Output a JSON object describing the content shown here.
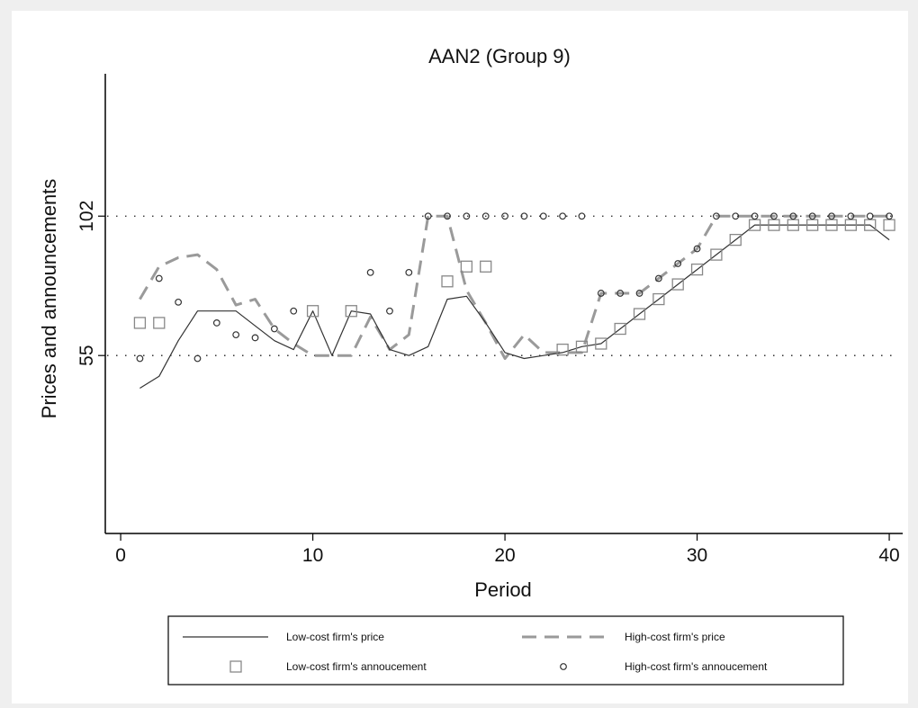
{
  "chart_data": {
    "type": "line",
    "title": "AAN2 (Group 9)",
    "xlabel": "Period",
    "ylabel": "Prices and announcements",
    "xlim": [
      -0.8,
      40.7
    ],
    "ylim": [
      -5,
      150
    ],
    "xticks": [
      0,
      10,
      20,
      30,
      40
    ],
    "yticks": [
      55,
      102
    ],
    "reference_lines": [
      55,
      102
    ],
    "grid": false,
    "legend_position": "bottom",
    "series": [
      {
        "name": "Low-cost firm's price",
        "style": "solid",
        "x": [
          1,
          2,
          3,
          4,
          5,
          6,
          7,
          8,
          9,
          10,
          11,
          12,
          13,
          14,
          15,
          16,
          17,
          18,
          19,
          20,
          21,
          22,
          23,
          24,
          25,
          26,
          27,
          28,
          29,
          30,
          31,
          32,
          33,
          34,
          35,
          36,
          37,
          38,
          39,
          40
        ],
        "y": [
          44,
          48,
          60,
          70,
          70,
          70,
          65,
          60,
          57,
          70,
          55,
          70,
          69,
          57,
          55,
          58,
          74,
          75,
          66,
          56,
          54,
          55,
          56,
          58,
          59,
          64,
          69,
          74,
          79,
          84,
          89,
          94,
          99,
          99,
          99,
          99,
          99,
          99,
          99,
          94
        ]
      },
      {
        "name": "High-cost firm's price",
        "style": "dashed",
        "x": [
          1,
          2,
          3,
          4,
          5,
          6,
          7,
          8,
          9,
          10,
          11,
          12,
          13,
          14,
          15,
          16,
          17,
          18,
          19,
          20,
          21,
          22,
          23,
          24,
          25,
          26,
          27,
          28,
          29,
          30,
          31,
          32,
          33,
          34,
          35,
          36,
          37,
          38,
          39,
          40
        ],
        "y": [
          74,
          85,
          88,
          89,
          84,
          72,
          74,
          64,
          59,
          55,
          55,
          55,
          68,
          57,
          62,
          102,
          102,
          77,
          66,
          54,
          62,
          56,
          56,
          56,
          76,
          76,
          76,
          81,
          86,
          91,
          102,
          102,
          102,
          102,
          102,
          102,
          102,
          102,
          102,
          102
        ]
      },
      {
        "name": "Low-cost firm's annoucement",
        "marker": "square",
        "x": [
          1,
          2,
          10,
          12,
          17,
          18,
          19,
          23,
          24,
          25,
          26,
          27,
          28,
          29,
          30,
          31,
          32,
          33,
          34,
          35,
          36,
          37,
          38,
          39,
          40
        ],
        "y": [
          66,
          66,
          70,
          70,
          80,
          85,
          85,
          57,
          58,
          59,
          64,
          69,
          74,
          79,
          84,
          89,
          94,
          99,
          99,
          99,
          99,
          99,
          99,
          99,
          99
        ]
      },
      {
        "name": "High-cost firm's annoucement",
        "marker": "circle",
        "x": [
          1,
          2,
          3,
          4,
          5,
          6,
          7,
          8,
          9,
          13,
          14,
          15,
          16,
          17,
          18,
          19,
          20,
          21,
          22,
          23,
          24,
          25,
          26,
          27,
          28,
          29,
          30,
          31,
          32,
          33,
          34,
          35,
          36,
          37,
          38,
          39,
          40
        ],
        "y": [
          54,
          81,
          73,
          54,
          66,
          62,
          61,
          64,
          70,
          83,
          70,
          83,
          102,
          102,
          102,
          102,
          102,
          102,
          102,
          102,
          102,
          76,
          76,
          76,
          81,
          86,
          91,
          102,
          102,
          102,
          102,
          102,
          102,
          102,
          102,
          102,
          102
        ]
      }
    ],
    "legend": {
      "entries": [
        "Low-cost firm's price",
        "High-cost firm's price",
        "Low-cost firm's annoucement",
        "High-cost firm's annoucement"
      ]
    }
  }
}
